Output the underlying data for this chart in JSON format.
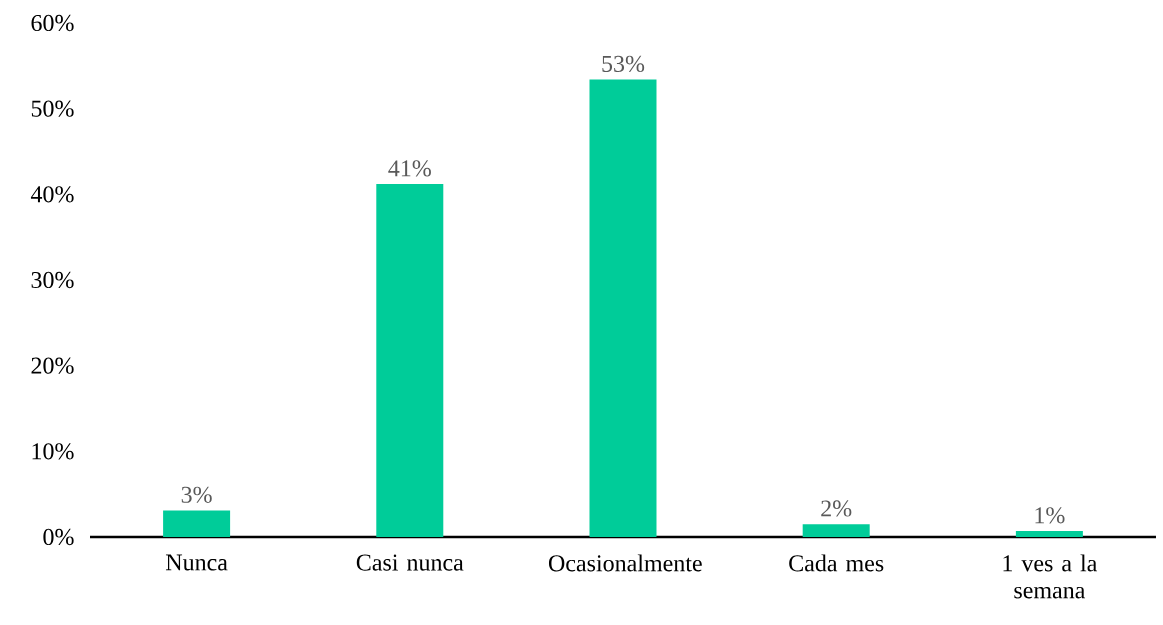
{
  "chart_data": {
    "type": "bar",
    "categories": [
      "Nunca",
      "Casi nunca",
      "Ocasionalmente",
      "Cada mes",
      "1 ves a la semana"
    ],
    "values": [
      3.1,
      41.2,
      53.4,
      1.5,
      0.7
    ],
    "value_labels": [
      "3%",
      "41%",
      "53%",
      "2%",
      "1%"
    ],
    "color": "#00cc99",
    "ylim": [
      0,
      60
    ],
    "yticks": [
      {
        "value": 0,
        "label": "0%"
      },
      {
        "value": 10,
        "label": "10%"
      },
      {
        "value": 20,
        "label": "20%"
      },
      {
        "value": 30,
        "label": "30%"
      },
      {
        "value": 40,
        "label": "40%"
      },
      {
        "value": 50,
        "label": "50%"
      },
      {
        "value": 60,
        "label": "60%"
      }
    ],
    "grid": false
  }
}
